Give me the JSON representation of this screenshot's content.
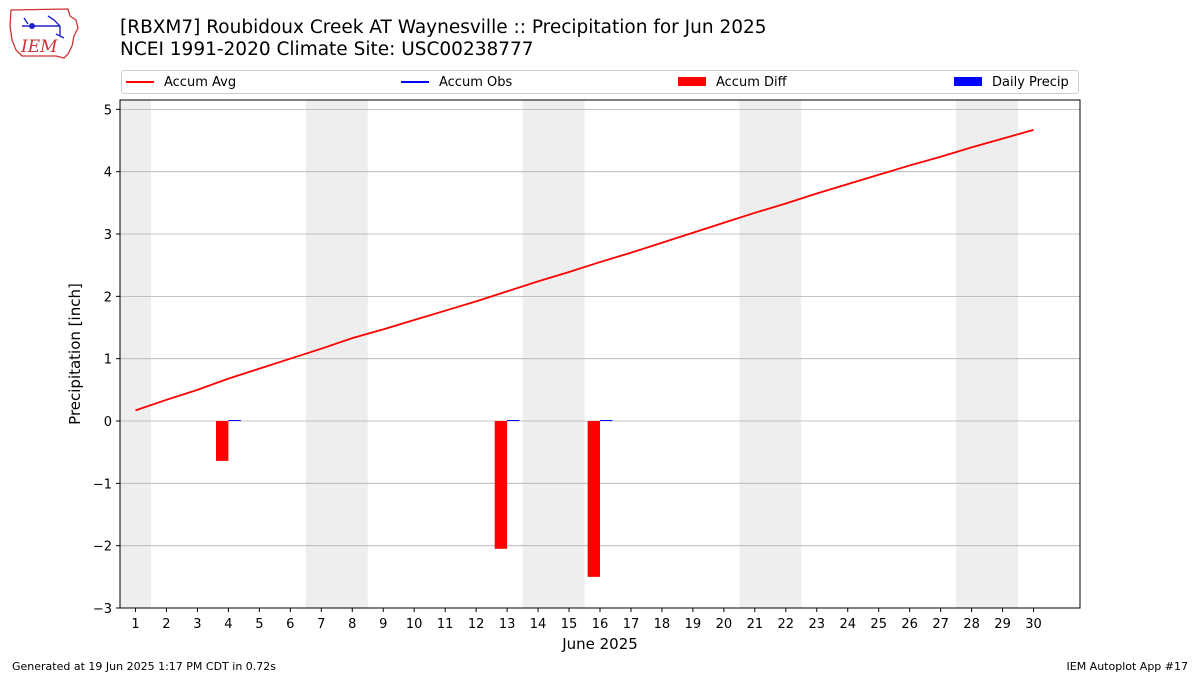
{
  "header": {
    "title_line1": "[RBXM7] Roubidoux Creek AT Waynesville :: Precipitation for Jun 2025",
    "title_line2": "NCEI 1991-2020 Climate Site: USC00238777"
  },
  "logo": {
    "text": "IEM"
  },
  "footer": {
    "generated": "Generated at 19 Jun 2025 1:17 PM CDT in 0.72s",
    "app": "IEM Autoplot App #17"
  },
  "colors": {
    "avg": "#ff0000",
    "obs": "#0000ff",
    "diff": "#ff0000",
    "daily": "#0000ff",
    "weekend": "#eeeeee",
    "grid": "#b0b0b0"
  },
  "chart_data": {
    "type": "line",
    "title": "[RBXM7] Roubidoux Creek AT Waynesville :: Precipitation for Jun 2025",
    "subtitle": "NCEI 1991-2020 Climate Site: USC00238777",
    "xlabel": "June 2025",
    "ylabel": "Precipitation [inch]",
    "xlim": [
      0.5,
      31.5
    ],
    "ylim": [
      -3,
      5.15
    ],
    "yticks": [
      -3,
      -2,
      -1,
      0,
      1,
      2,
      3,
      4,
      5
    ],
    "ytick_labels": [
      "−3",
      "−2",
      "−1",
      "0",
      "1",
      "2",
      "3",
      "4",
      "5"
    ],
    "xticks": [
      1,
      2,
      3,
      4,
      5,
      6,
      7,
      8,
      9,
      10,
      11,
      12,
      13,
      14,
      15,
      16,
      17,
      18,
      19,
      20,
      21,
      22,
      23,
      24,
      25,
      26,
      27,
      28,
      29,
      30
    ],
    "xtick_labels": [
      "1",
      "2",
      "3",
      "4",
      "5",
      "6",
      "7",
      "8",
      "9",
      "10",
      "11",
      "12",
      "13",
      "14",
      "15",
      "16",
      "17",
      "18",
      "19",
      "20",
      "21",
      "22",
      "23",
      "24",
      "25",
      "26",
      "27",
      "28",
      "29",
      "30"
    ],
    "grid": "y",
    "legend": {
      "placement": "top",
      "entries": [
        {
          "label": "Accum Avg",
          "kind": "line",
          "color": "#ff0000"
        },
        {
          "label": "Accum Obs",
          "kind": "line",
          "color": "#0000ff"
        },
        {
          "label": "Accum Diff",
          "kind": "bar",
          "color": "#ff0000"
        },
        {
          "label": "Daily Precip",
          "kind": "bar",
          "color": "#0000ff"
        }
      ]
    },
    "weekend_shading": [
      [
        0.5,
        1.5
      ],
      [
        6.5,
        8.5
      ],
      [
        13.5,
        15.5
      ],
      [
        20.5,
        22.5
      ],
      [
        27.5,
        29.5
      ]
    ],
    "series": [
      {
        "name": "Accum Avg",
        "type": "line",
        "x": [
          1,
          2,
          3,
          4,
          5,
          6,
          7,
          8,
          9,
          10,
          11,
          12,
          13,
          14,
          15,
          16,
          17,
          18,
          19,
          20,
          21,
          22,
          23,
          24,
          25,
          26,
          27,
          28,
          29,
          30
        ],
        "values": [
          0.17,
          0.34,
          0.5,
          0.68,
          0.84,
          1.0,
          1.16,
          1.33,
          1.47,
          1.62,
          1.77,
          1.92,
          2.08,
          2.24,
          2.39,
          2.55,
          2.7,
          2.86,
          3.02,
          3.18,
          3.34,
          3.49,
          3.65,
          3.8,
          3.95,
          4.1,
          4.24,
          4.39,
          4.53,
          4.67
        ]
      },
      {
        "name": "Accum Diff",
        "type": "bar",
        "x": [
          4,
          13,
          16
        ],
        "values": [
          -0.64,
          -2.05,
          -2.5
        ]
      },
      {
        "name": "Daily Precip",
        "type": "bar",
        "x": [
          4,
          13,
          16
        ],
        "values": [
          0.01,
          0.01,
          0.01
        ]
      }
    ]
  }
}
